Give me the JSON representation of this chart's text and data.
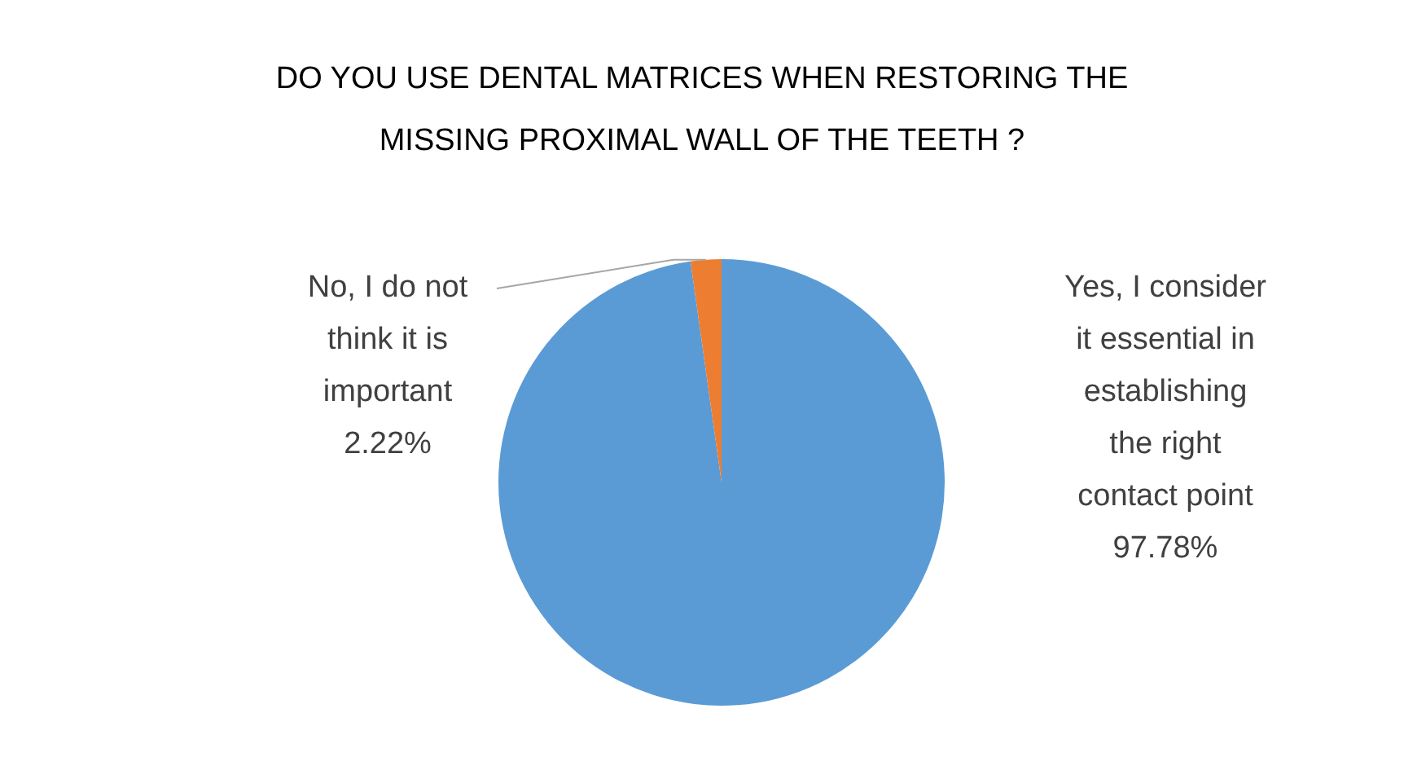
{
  "chart_data": {
    "type": "pie",
    "title": "DO YOU USE DENTAL MATRICES WHEN RESTORING THE MISSING PROXIMAL WALL OF THE TEETH ?",
    "categories": [
      "Yes, I consider it essential in establishing the right contact point",
      "No, I do not think it is important"
    ],
    "values": [
      97.78,
      2.22
    ],
    "colors": [
      "#5b9bd5",
      "#ed7d31"
    ],
    "value_labels": [
      "97.78%",
      "2.22%"
    ],
    "legend": false
  }
}
